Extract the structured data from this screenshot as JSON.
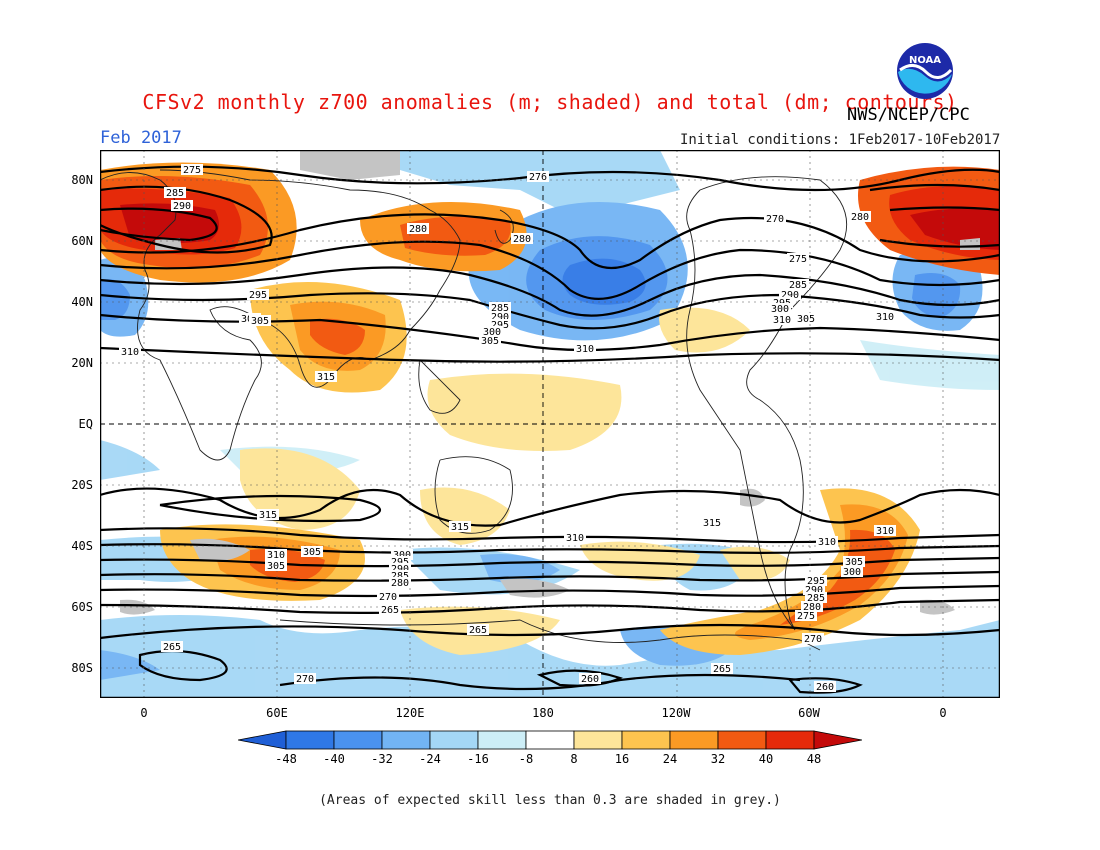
{
  "title": "CFSv2 monthly z700 anomalies (m; shaded) and total (dm; contours)",
  "agency": "NWS/NCEP/CPC",
  "logo_text": "NOAA",
  "valid_month": "Feb 2017",
  "initial_conditions": "Initial conditions: 1Feb2017-10Feb2017",
  "lat_labels": [
    "80N",
    "60N",
    "40N",
    "20N",
    "EQ",
    "20S",
    "40S",
    "60S",
    "80S"
  ],
  "lon_labels": [
    "0",
    "60E",
    "120E",
    "180",
    "120W",
    "60W",
    "0"
  ],
  "colorbar": {
    "ticks": [
      "-48",
      "-40",
      "-32",
      "-24",
      "-16",
      "-8",
      "8",
      "16",
      "24",
      "32",
      "40",
      "48"
    ],
    "colors": [
      "#1f5fd6",
      "#2f78e6",
      "#4a92ef",
      "#72b4f4",
      "#a4d7f6",
      "#cdeef7",
      "#ffffff",
      "#fde59a",
      "#fdc44f",
      "#fb9a24",
      "#f25a12",
      "#e52a0a",
      "#c40a0a"
    ]
  },
  "contour_labels": [
    "275",
    "285",
    "290",
    "276",
    "270",
    "280",
    "280",
    "280",
    "275",
    "285",
    "290",
    "295",
    "300",
    "305",
    "310",
    "295",
    "300",
    "305",
    "310",
    "285",
    "290",
    "295",
    "300",
    "305",
    "310",
    "310",
    "315",
    "315",
    "315",
    "310",
    "305",
    "315",
    "310",
    "300",
    "295",
    "290",
    "285",
    "280",
    "270",
    "265",
    "265",
    "265",
    "270",
    "260",
    "265",
    "260",
    "310",
    "305",
    "300",
    "295",
    "290",
    "285",
    "280",
    "275",
    "270",
    "310",
    "305"
  ],
  "footnote": "(Areas of expected skill less than 0.3 are shaded in grey.)"
}
